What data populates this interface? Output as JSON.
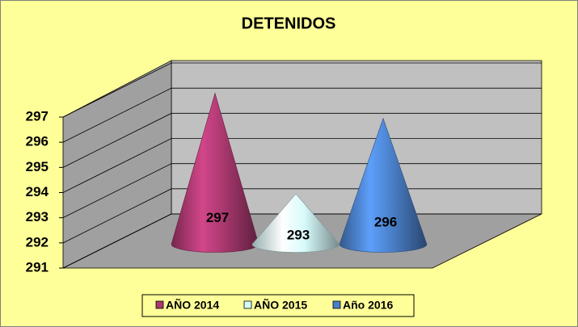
{
  "chart_data": {
    "type": "cone",
    "title": "DETENIDOS",
    "series": [
      {
        "name": "AÑO 2014",
        "color": "#a8386e",
        "values": [
          297
        ]
      },
      {
        "name": "AÑO 2015",
        "color": "#d6fafa",
        "values": [
          293
        ]
      },
      {
        "name": "Año 2016",
        "color": "#4a7fc8",
        "values": [
          296
        ]
      }
    ],
    "ylim": [
      291,
      297
    ],
    "yticks": [
      291,
      292,
      293,
      294,
      295,
      296,
      297
    ],
    "grid": true,
    "legend": "bottom"
  }
}
